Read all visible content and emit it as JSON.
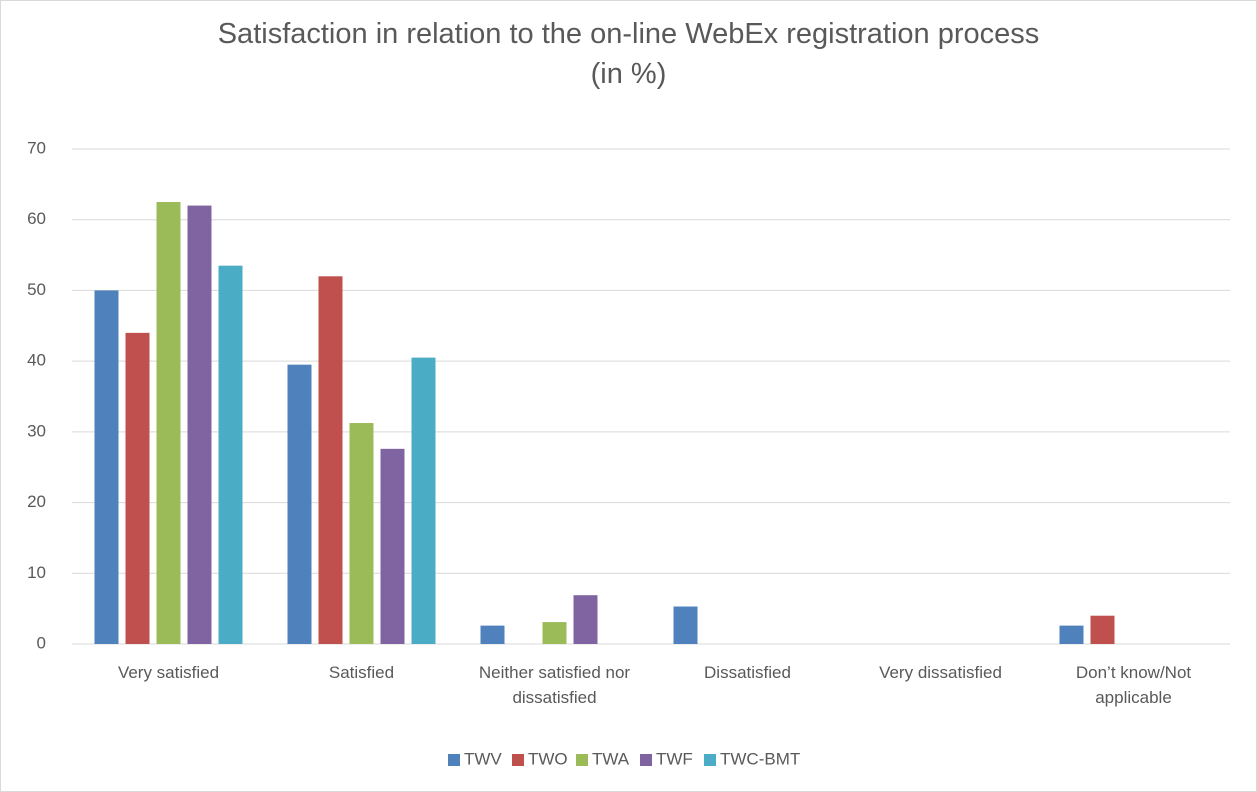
{
  "chart_data": {
    "type": "bar",
    "title": "Satisfaction in relation to the on-line WebEx registration process (in %)",
    "categories": [
      "Very satisfied",
      "Satisfied",
      "Neither satisfied nor dissatisfied",
      "Dissatisfied",
      "Very dissatisfied",
      "Don’t know/Not applicable"
    ],
    "series": [
      {
        "name": "TWV",
        "color": "#4f81bd",
        "values": [
          50,
          39.5,
          2.6,
          5.3,
          0,
          2.6
        ]
      },
      {
        "name": "TWO",
        "color": "#c0504d",
        "values": [
          44,
          52,
          0,
          0,
          0,
          4
        ]
      },
      {
        "name": "TWA",
        "color": "#9bbb59",
        "values": [
          62.5,
          31.25,
          3.1,
          0,
          0,
          0
        ]
      },
      {
        "name": "TWF",
        "color": "#8064a2",
        "values": [
          62,
          27.6,
          6.9,
          0,
          0,
          0
        ]
      },
      {
        "name": "TWC-BMT",
        "color": "#4bacc6",
        "values": [
          53.5,
          40.5,
          0,
          0,
          0,
          0
        ]
      }
    ],
    "ylim": [
      0,
      70
    ],
    "yticks": [
      0,
      10,
      20,
      30,
      40,
      50,
      60,
      70
    ],
    "grid": true,
    "legend": "bottom"
  }
}
